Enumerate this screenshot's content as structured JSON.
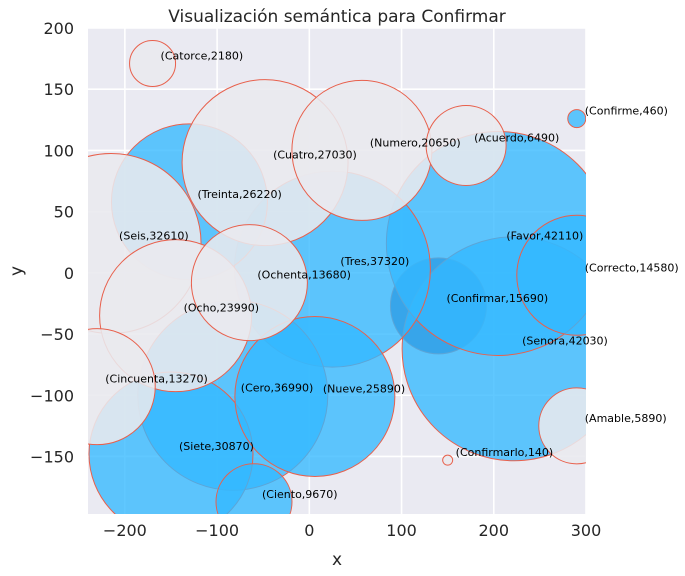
{
  "chart_data": {
    "type": "scatter",
    "title": "Visualización semántica para Confirmar",
    "xlabel": "x",
    "ylabel": "y",
    "xlim": [
      -240,
      300
    ],
    "ylim": [
      -197,
      200
    ],
    "xticks": [
      -200,
      -100,
      0,
      100,
      200,
      300
    ],
    "yticks": [
      -150,
      -100,
      -50,
      0,
      50,
      100,
      150,
      200
    ],
    "xtick_labels": [
      "−200",
      "−100",
      "0",
      "100",
      "200",
      "300"
    ],
    "ytick_labels": [
      "−150",
      "−100",
      "−50",
      "0",
      "50",
      "100",
      "150",
      "200"
    ],
    "grid": true,
    "colors": {
      "background": "#eaeaf2",
      "grid": "#ffffff",
      "blue": "#33b8ff",
      "gray": "#e9e9ee",
      "dark": "#3d5a99",
      "edge": "#e8604c"
    },
    "points": [
      {
        "word": "Confirmar",
        "x": 140,
        "y": -27,
        "value": 15690,
        "label": "(Confirmar,15690)",
        "color": "dark",
        "radius_px": 48
      },
      {
        "word": "Senora",
        "x": 222,
        "y": -62,
        "value": 42030,
        "label": "(Senora,42030)",
        "color": "blue",
        "radius_px": 112
      },
      {
        "word": "Favor",
        "x": 205,
        "y": 24,
        "value": 42110,
        "label": "(Favor,42110)",
        "color": "blue",
        "radius_px": 112
      },
      {
        "word": "Tres",
        "x": 25,
        "y": 3,
        "value": 37320,
        "label": "(Tres,37320)",
        "color": "blue",
        "radius_px": 98
      },
      {
        "word": "Cero",
        "x": -83,
        "y": -100,
        "value": 36990,
        "label": "(Cero,36990)",
        "color": "blue",
        "radius_px": 95
      },
      {
        "word": "Siete",
        "x": -150,
        "y": -148,
        "value": 30870,
        "label": "(Siete,30870)",
        "color": "blue",
        "radius_px": 82
      },
      {
        "word": "Nueve",
        "x": 6,
        "y": -101,
        "value": 25890,
        "label": "(Nueve,25890)",
        "color": "blue",
        "radius_px": 80
      },
      {
        "word": "Treinta",
        "x": -130,
        "y": 58,
        "value": 26220,
        "label": "(Treinta,26220)",
        "color": "blue",
        "radius_px": 78
      },
      {
        "word": "Ciento",
        "x": -60,
        "y": -187,
        "value": 9670,
        "label": "(Ciento,9670)",
        "color": "blue",
        "radius_px": 38
      },
      {
        "word": "Correcto",
        "x": 290,
        "y": -2,
        "value": 14580,
        "label": "(Correcto,14580)",
        "color": "blue",
        "radius_px": 60
      },
      {
        "word": "Confirme",
        "x": 290,
        "y": 126,
        "value": 460,
        "label": "(Confirme,460)",
        "color": "blue",
        "radius_px": 9
      },
      {
        "word": "Cuatro",
        "x": -48,
        "y": 90,
        "value": 27030,
        "label": "(Cuatro,27030)",
        "color": "gray",
        "radius_px": 83
      },
      {
        "word": "Numero",
        "x": 57,
        "y": 100,
        "value": 20650,
        "label": "(Numero,20650)",
        "color": "gray",
        "radius_px": 70
      },
      {
        "word": "Seis",
        "x": -215,
        "y": 24,
        "value": 32610,
        "label": "(Seis,32610)",
        "color": "gray",
        "radius_px": 90
      },
      {
        "word": "Ocho",
        "x": -145,
        "y": -35,
        "value": 23990,
        "label": "(Ocho,23990)",
        "color": "gray",
        "radius_px": 76
      },
      {
        "word": "Ochenta",
        "x": -65,
        "y": -8,
        "value": 13680,
        "label": "(Ochenta,13680)",
        "color": "gray",
        "radius_px": 58
      },
      {
        "word": "Cincuenta",
        "x": -230,
        "y": -93,
        "value": 13270,
        "label": "(Cincuenta,13270)",
        "color": "gray",
        "radius_px": 58
      },
      {
        "word": "Acuerdo",
        "x": 170,
        "y": 104,
        "value": 6490,
        "label": "(Acuerdo,6490)",
        "color": "gray",
        "radius_px": 40
      },
      {
        "word": "Catorce",
        "x": -170,
        "y": 171,
        "value": 2180,
        "label": "(Catorce,2180)",
        "color": "gray",
        "radius_px": 23
      },
      {
        "word": "Amable",
        "x": 290,
        "y": -125,
        "value": 5890,
        "label": "(Amable,5890)",
        "color": "gray",
        "radius_px": 38
      },
      {
        "word": "Confirmarlo",
        "x": 150,
        "y": -153,
        "value": 140,
        "label": "(Confirmarlo,140)",
        "color": "gray",
        "radius_px": 5
      }
    ]
  }
}
